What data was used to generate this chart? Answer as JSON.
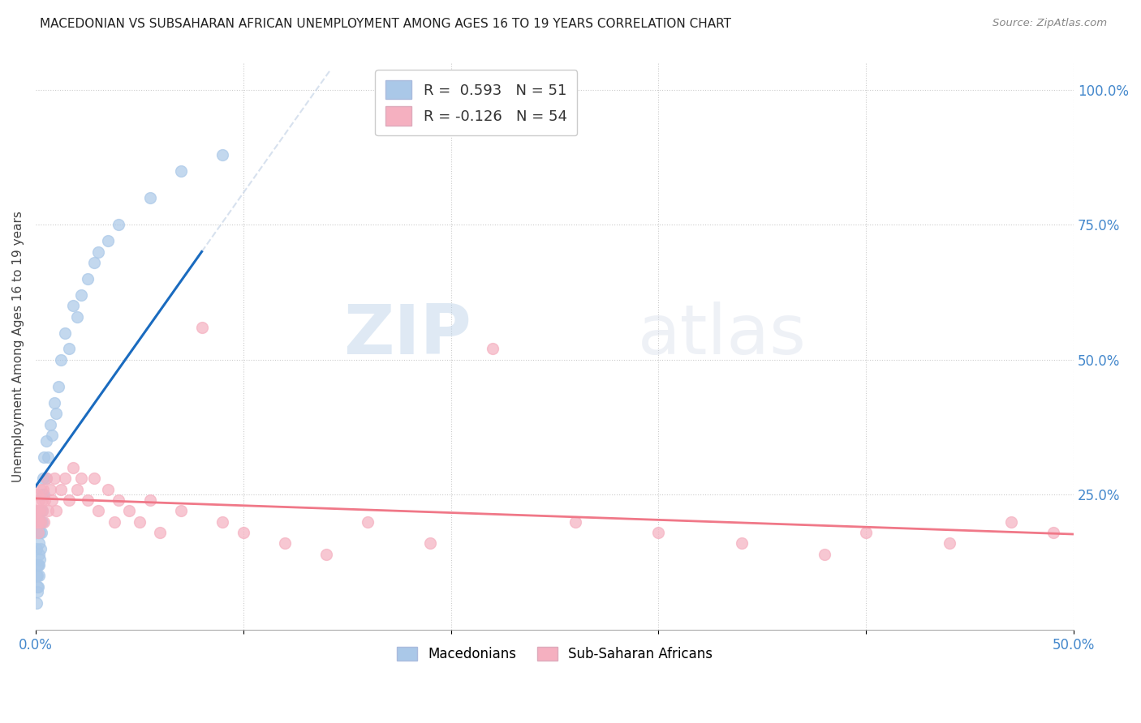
{
  "title": "MACEDONIAN VS SUBSAHARAN AFRICAN UNEMPLOYMENT AMONG AGES 16 TO 19 YEARS CORRELATION CHART",
  "source": "Source: ZipAtlas.com",
  "ylabel": "Unemployment Among Ages 16 to 19 years",
  "xlim": [
    0.0,
    0.5
  ],
  "ylim": [
    0.0,
    1.05
  ],
  "macedonian_color": "#aac8e8",
  "subsaharan_color": "#f5b0c0",
  "macedonian_line_color": "#1a6bbf",
  "subsaharan_line_color": "#f07888",
  "r_macedonian": 0.593,
  "n_macedonian": 51,
  "r_subsaharan": -0.126,
  "n_subsaharan": 54,
  "watermark_zip": "ZIP",
  "watermark_atlas": "atlas",
  "macedonian_x": [
    0.0005,
    0.0005,
    0.0005,
    0.0007,
    0.0008,
    0.0009,
    0.001,
    0.001,
    0.0012,
    0.0013,
    0.0014,
    0.0015,
    0.0015,
    0.0016,
    0.0017,
    0.0018,
    0.002,
    0.002,
    0.0022,
    0.0023,
    0.0025,
    0.0026,
    0.003,
    0.003,
    0.0032,
    0.0035,
    0.004,
    0.004,
    0.005,
    0.005,
    0.006,
    0.007,
    0.008,
    0.009,
    0.01,
    0.011,
    0.012,
    0.014,
    0.016,
    0.018,
    0.02,
    0.022,
    0.025,
    0.028,
    0.03,
    0.035,
    0.04,
    0.055,
    0.07,
    0.09,
    0.22
  ],
  "macedonian_y": [
    0.05,
    0.1,
    0.15,
    0.07,
    0.12,
    0.08,
    0.1,
    0.2,
    0.12,
    0.18,
    0.08,
    0.14,
    0.22,
    0.1,
    0.16,
    0.12,
    0.18,
    0.13,
    0.2,
    0.15,
    0.22,
    0.18,
    0.2,
    0.25,
    0.22,
    0.28,
    0.25,
    0.32,
    0.28,
    0.35,
    0.32,
    0.38,
    0.36,
    0.42,
    0.4,
    0.45,
    0.5,
    0.55,
    0.52,
    0.6,
    0.58,
    0.62,
    0.65,
    0.68,
    0.7,
    0.72,
    0.75,
    0.8,
    0.85,
    0.88,
    1.0
  ],
  "subsaharan_x": [
    0.0005,
    0.0008,
    0.001,
    0.0012,
    0.0014,
    0.0016,
    0.0018,
    0.002,
    0.0022,
    0.0025,
    0.003,
    0.0032,
    0.0035,
    0.004,
    0.0045,
    0.005,
    0.006,
    0.007,
    0.008,
    0.009,
    0.01,
    0.012,
    0.014,
    0.016,
    0.018,
    0.02,
    0.022,
    0.025,
    0.028,
    0.03,
    0.035,
    0.038,
    0.04,
    0.045,
    0.05,
    0.055,
    0.06,
    0.07,
    0.08,
    0.09,
    0.1,
    0.12,
    0.14,
    0.16,
    0.19,
    0.22,
    0.26,
    0.3,
    0.34,
    0.38,
    0.4,
    0.44,
    0.47,
    0.49
  ],
  "subsaharan_y": [
    0.22,
    0.2,
    0.25,
    0.18,
    0.22,
    0.2,
    0.24,
    0.22,
    0.26,
    0.2,
    0.24,
    0.22,
    0.26,
    0.2,
    0.24,
    0.28,
    0.22,
    0.26,
    0.24,
    0.28,
    0.22,
    0.26,
    0.28,
    0.24,
    0.3,
    0.26,
    0.28,
    0.24,
    0.28,
    0.22,
    0.26,
    0.2,
    0.24,
    0.22,
    0.2,
    0.24,
    0.18,
    0.22,
    0.56,
    0.2,
    0.18,
    0.16,
    0.14,
    0.2,
    0.16,
    0.52,
    0.2,
    0.18,
    0.16,
    0.14,
    0.18,
    0.16,
    0.2,
    0.18
  ]
}
